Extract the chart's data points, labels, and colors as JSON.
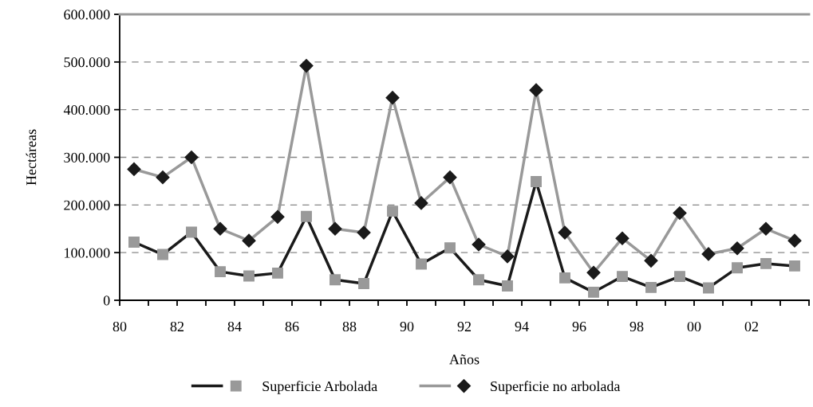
{
  "chart_data": {
    "type": "line",
    "xlabel": "Años",
    "ylabel": "Hectáreas",
    "x": [
      1980.5,
      1981.5,
      1982.5,
      1983.5,
      1984.5,
      1985.5,
      1986.5,
      1987.5,
      1988.5,
      1989.5,
      1990.5,
      1991.5,
      1992.5,
      1993.5,
      1994.5,
      1995.5,
      1996.5,
      1997.5,
      1998.5,
      1999.5,
      2000.5,
      2001.5,
      2002.5,
      2003.5
    ],
    "series": [
      {
        "name": "Superficie Arbolada",
        "color": "#1a1a1a",
        "marker": "square",
        "values": [
          122000,
          96000,
          143000,
          60000,
          51000,
          57000,
          176000,
          43000,
          35000,
          187000,
          76000,
          110000,
          43000,
          30000,
          249000,
          47000,
          17000,
          50000,
          27000,
          50000,
          26000,
          68000,
          77000,
          72000
        ]
      },
      {
        "name": "Superficie no arbolada",
        "color": "#999999",
        "marker": "diamond",
        "values": [
          275000,
          258000,
          300000,
          150000,
          125000,
          175000,
          492000,
          150000,
          142000,
          425000,
          204000,
          258000,
          117000,
          92000,
          441000,
          142000,
          58000,
          130000,
          83000,
          183000,
          97000,
          109000,
          150000,
          125000
        ]
      }
    ],
    "xlim": [
      1980,
      2004
    ],
    "xticks": [
      {
        "value": 1980,
        "label": "80"
      },
      {
        "value": 1981,
        "label": null
      },
      {
        "value": 1982,
        "label": "82"
      },
      {
        "value": 1983,
        "label": null
      },
      {
        "value": 1984,
        "label": "84"
      },
      {
        "value": 1985,
        "label": null
      },
      {
        "value": 1986,
        "label": "86"
      },
      {
        "value": 1987,
        "label": null
      },
      {
        "value": 1988,
        "label": "88"
      },
      {
        "value": 1989,
        "label": null
      },
      {
        "value": 1990,
        "label": "90"
      },
      {
        "value": 1991,
        "label": null
      },
      {
        "value": 1992,
        "label": "92"
      },
      {
        "value": 1993,
        "label": null
      },
      {
        "value": 1994,
        "label": "94"
      },
      {
        "value": 1995,
        "label": null
      },
      {
        "value": 1996,
        "label": "96"
      },
      {
        "value": 1997,
        "label": null
      },
      {
        "value": 1998,
        "label": "98"
      },
      {
        "value": 1999,
        "label": null
      },
      {
        "value": 2000,
        "label": "00"
      },
      {
        "value": 2001,
        "label": null
      },
      {
        "value": 2002,
        "label": "02"
      },
      {
        "value": 2003,
        "label": null
      },
      {
        "value": 2004,
        "label": null
      }
    ],
    "ylim": [
      0,
      600000
    ],
    "yticks": [
      {
        "value": 0,
        "label": "0"
      },
      {
        "value": 100000,
        "label": "100.000"
      },
      {
        "value": 200000,
        "label": "200.000"
      },
      {
        "value": 300000,
        "label": "300.000"
      },
      {
        "value": 400000,
        "label": "400.000"
      },
      {
        "value": 500000,
        "label": "500.000"
      },
      {
        "value": 600000,
        "label": "600.000"
      }
    ],
    "grid": "y",
    "legend": "bottom",
    "line_style": "solid"
  }
}
